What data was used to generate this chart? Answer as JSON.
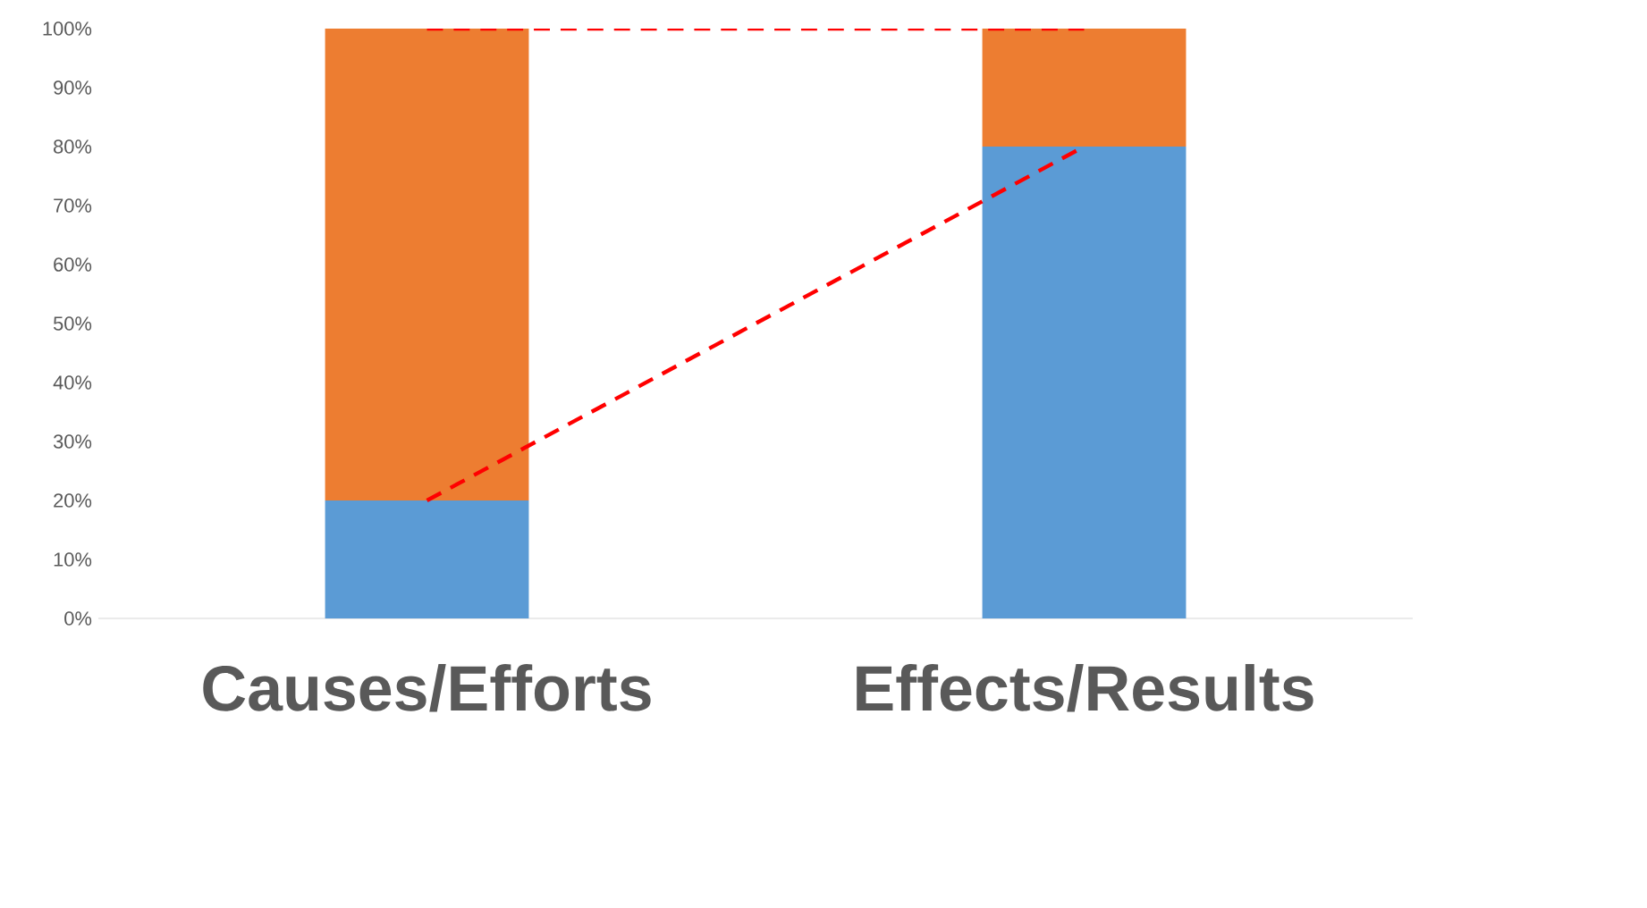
{
  "chart_data": {
    "type": "bar",
    "stacked": true,
    "categories": [
      "Causes/Efforts",
      "Effects/Results"
    ],
    "series": [
      {
        "color": "#5b9bd5",
        "values": [
          20,
          80
        ]
      },
      {
        "color": "#ed7d31",
        "values": [
          80,
          20
        ]
      },
      {
        "type": "line",
        "color": "#ff0000",
        "line_style": "dashed",
        "values": [
          20,
          80
        ]
      },
      {
        "type": "line",
        "color": "#ff0000",
        "line_style": "dashed",
        "values": [
          100,
          100
        ]
      }
    ],
    "ylim": [
      0,
      100
    ],
    "yticks": [
      {
        "value": 0,
        "label": "0%"
      },
      {
        "value": 10,
        "label": "10%"
      },
      {
        "value": 20,
        "label": "20%"
      },
      {
        "value": 30,
        "label": "30%"
      },
      {
        "value": 40,
        "label": "40%"
      },
      {
        "value": 50,
        "label": "50%"
      },
      {
        "value": 60,
        "label": "60%"
      },
      {
        "value": 70,
        "label": "70%"
      },
      {
        "value": 80,
        "label": "80%"
      },
      {
        "value": 90,
        "label": "90%"
      },
      {
        "value": 100,
        "label": "100%"
      }
    ],
    "grid": false
  }
}
